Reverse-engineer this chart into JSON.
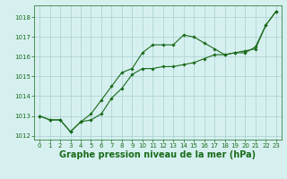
{
  "line1_x": [
    0,
    1,
    2,
    3,
    4,
    5,
    6,
    7,
    8,
    9,
    10,
    11,
    12,
    13,
    14,
    15,
    16,
    17,
    18,
    19,
    20,
    21,
    22,
    23
  ],
  "line1_y": [
    1013.0,
    1012.8,
    1012.8,
    1012.2,
    1012.7,
    1012.8,
    1013.1,
    1013.9,
    1014.4,
    1015.1,
    1015.4,
    1015.4,
    1015.5,
    1015.5,
    1015.6,
    1015.7,
    1015.9,
    1016.1,
    1016.1,
    1016.2,
    1016.3,
    1016.4,
    1017.6,
    1018.3
  ],
  "line2_x": [
    0,
    1,
    2,
    3,
    4,
    5,
    6,
    7,
    8,
    9,
    10,
    11,
    12,
    13,
    14,
    15,
    16,
    17,
    18,
    19,
    20,
    21,
    22,
    23
  ],
  "line2_y": [
    1013.0,
    1012.8,
    1012.8,
    1012.2,
    1012.7,
    1013.1,
    1013.8,
    1014.5,
    1015.2,
    1015.4,
    1016.2,
    1016.6,
    1016.6,
    1016.6,
    1017.1,
    1017.0,
    1016.7,
    1016.4,
    1016.1,
    1016.2,
    1016.2,
    1016.5,
    1017.6,
    1018.3
  ],
  "line_color": "#1a6b1a",
  "marker": "D",
  "marker_size": 1.8,
  "linewidth": 0.8,
  "background_color": "#d6f0f0",
  "grid_color": "#a0c8c8",
  "xlabel": "Graphe pression niveau de la mer (hPa)",
  "ylim": [
    1011.8,
    1018.6
  ],
  "xlim": [
    -0.5,
    23.5
  ],
  "yticks": [
    1012,
    1013,
    1014,
    1015,
    1016,
    1017,
    1018
  ],
  "xticks": [
    0,
    1,
    2,
    3,
    4,
    5,
    6,
    7,
    8,
    9,
    10,
    11,
    12,
    13,
    14,
    15,
    16,
    17,
    18,
    19,
    20,
    21,
    22,
    23
  ],
  "tick_fontsize": 5.0,
  "xlabel_fontsize": 7.0,
  "fig_width": 3.2,
  "fig_height": 2.0,
  "dpi": 100
}
